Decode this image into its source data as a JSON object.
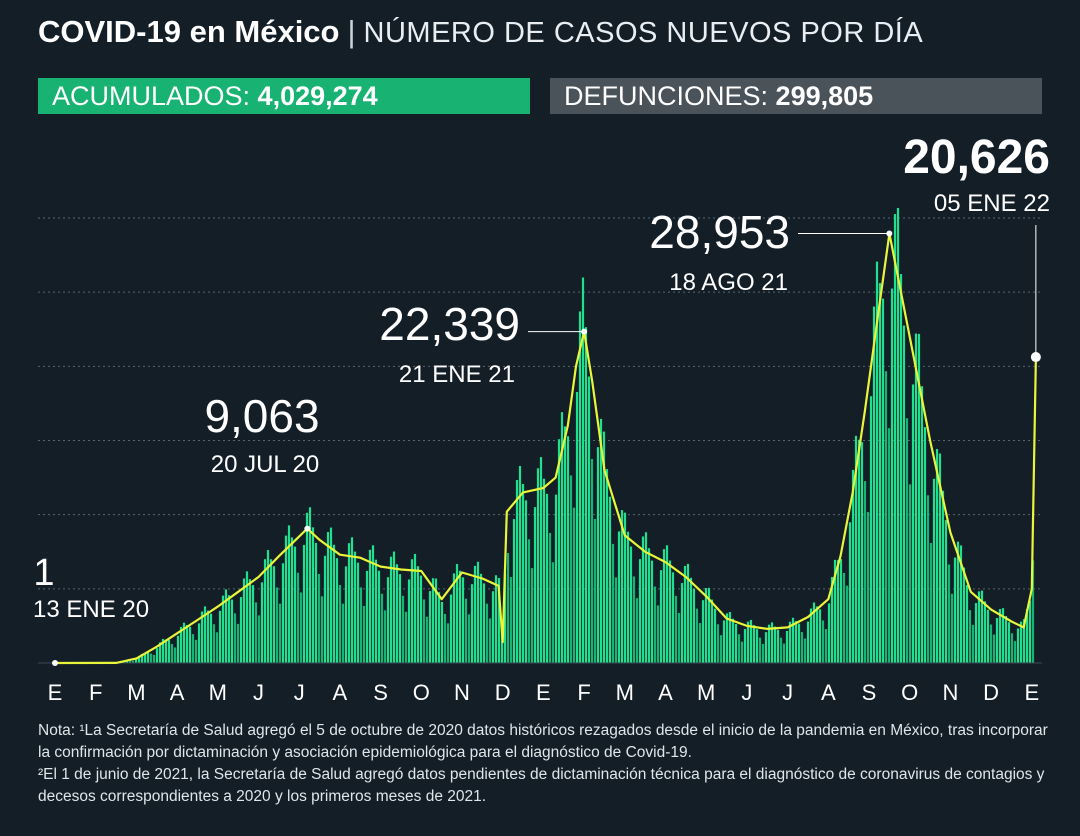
{
  "header": {
    "title": "COVID-19 en México",
    "separator": "|",
    "subtitle": "NÚMERO DE CASOS NUEVOS POR DÍA"
  },
  "stats": {
    "acumulados_label": "ACUMULADOS:",
    "acumulados_value": "4,029,274",
    "defunciones_label": "DEFUNCIONES:",
    "defunciones_value": "299,805"
  },
  "colors": {
    "background": "#141e27",
    "bars": "#1fe08f",
    "bars_dark": "#17b573",
    "line": "#e9f53a",
    "green_badge": "#18b372",
    "gray_badge": "#4b535a"
  },
  "chart_data": {
    "type": "bar",
    "x_axis": [
      "E",
      "F",
      "M",
      "A",
      "M",
      "J",
      "J",
      "A",
      "S",
      "O",
      "N",
      "D",
      "E",
      "F",
      "M",
      "A",
      "M",
      "J",
      "J",
      "A",
      "S",
      "O",
      "N",
      "D",
      "E"
    ],
    "ylim": [
      0,
      30000
    ],
    "grid": true,
    "series": [
      {
        "type": "line",
        "x": [
          0,
          1.5,
          2.0,
          2.5,
          3,
          3.5,
          4,
          4.5,
          5,
          5.5,
          6.2,
          6.5,
          7,
          7.5,
          8,
          8.5,
          9,
          9.5,
          10,
          10.5,
          10.9,
          11,
          11.1,
          11.5,
          12,
          12.3,
          12.6,
          12.8,
          13,
          13.2,
          13.5,
          14,
          14.5,
          15,
          15.5,
          16,
          16.5,
          17,
          17.5,
          18,
          18.5,
          19,
          19.3,
          19.6,
          19.9,
          20.2,
          20.5,
          21,
          21.5,
          22,
          22.5,
          23,
          23.5,
          23.8,
          24,
          24.1
        ],
        "y": [
          1,
          10,
          300,
          1100,
          2000,
          2900,
          3800,
          4800,
          5800,
          7200,
          9063,
          8300,
          7300,
          7100,
          6500,
          6300,
          6200,
          4300,
          6100,
          5700,
          5200,
          1400,
          10200,
          11500,
          11800,
          12500,
          16000,
          20000,
          22339,
          19000,
          13000,
          8600,
          7500,
          6800,
          5800,
          4500,
          3000,
          2500,
          2300,
          2400,
          3100,
          4300,
          7200,
          11500,
          17000,
          23000,
          28953,
          22000,
          15000,
          8800,
          4800,
          3600,
          2800,
          2400,
          5000,
          20626
        ]
      }
    ],
    "annotations": [
      {
        "label": "1",
        "date": "13 ENE 20",
        "x": 0,
        "value": 1
      },
      {
        "label": "9,063",
        "date": "20 JUL 20",
        "x": 6.2,
        "value": 9063
      },
      {
        "label": "22,339",
        "date": "21 ENE 21",
        "x": 13,
        "value": 22339
      },
      {
        "label": "28,953",
        "date": "18 AGO 21",
        "x": 20.5,
        "value": 28953
      },
      {
        "label": "20,626",
        "date": "05 ENE 22",
        "x": 24.1,
        "value": 20626
      }
    ]
  },
  "note": {
    "line1": "Nota: ¹La Secretaría de Salud agregó el 5 de octubre de 2020 datos históricos rezagados desde el inicio de la pandemia en México, tras incorporar la confirmación por dictaminación y asociación epidemiológica para el diagnóstico de Covid-19.",
    "line2": "²El 1 de junio de 2021, la Secretaría de Salud agregó datos pendientes de dictaminación técnica para el diagnóstico de coronavirus de contagios y decesos correspondientes a 2020 y los primeros meses de 2021."
  }
}
